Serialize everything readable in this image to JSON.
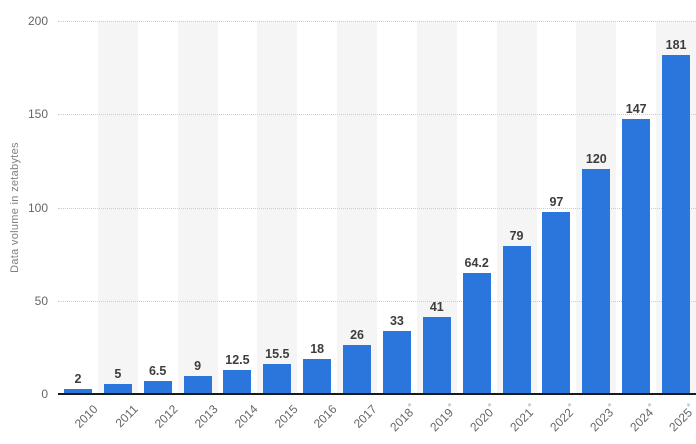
{
  "chart_data": {
    "type": "bar",
    "title": "",
    "xlabel": "",
    "ylabel": "Data volume in zetabytes",
    "ylim": [
      0,
      200
    ],
    "yticks": [
      0,
      50,
      100,
      150,
      200
    ],
    "grid": "horizontal dotted gridlines at 50/100/150/200, solid black x-axis baseline",
    "legend": "none",
    "background": "alternating white / light-gray vertical column stripes",
    "forecast_note_marker": "*",
    "categories": [
      "2010",
      "2011",
      "2012",
      "2013",
      "2014",
      "2015",
      "2016",
      "2017",
      "2018*",
      "2019*",
      "2020*",
      "2021*",
      "2022*",
      "2023*",
      "2024*",
      "2025*"
    ],
    "values": [
      2,
      5,
      6.5,
      9,
      12.5,
      15.5,
      18,
      26,
      33,
      41,
      64.2,
      79,
      97,
      120,
      147,
      181
    ],
    "value_labels": [
      "2",
      "5",
      "6.5",
      "9",
      "12.5",
      "15.5",
      "18",
      "26",
      "33",
      "41",
      "64.2",
      "79",
      "97",
      "120",
      "147",
      "181"
    ]
  },
  "style": {
    "bar_color": "#2a76dd",
    "stripe_color": "#f5f5f5",
    "gridline_color": "#cccccc",
    "axis_line_color": "#1a1a1a",
    "tick_label_color": "#666666",
    "value_label_color": "#3d3d3d",
    "forecast_asterisk_color": "#8fb3dd",
    "axis_title_color": "#7f7f7f"
  }
}
